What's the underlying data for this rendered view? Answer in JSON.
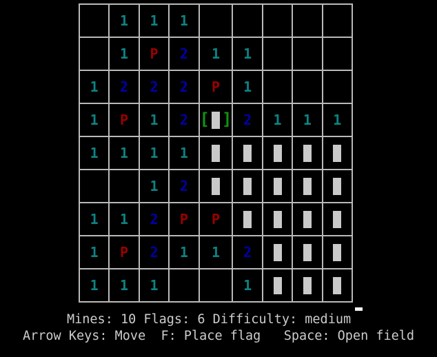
{
  "board": {
    "rows": 9,
    "cols": 9,
    "cells": [
      [
        "",
        "1",
        "1",
        "1",
        "",
        "",
        "",
        "",
        ""
      ],
      [
        "",
        "1",
        "P",
        "2",
        "1",
        "1",
        "",
        "",
        ""
      ],
      [
        "1",
        "2",
        "2",
        "2",
        "P",
        "1",
        "",
        "",
        ""
      ],
      [
        "1",
        "P",
        "1",
        "2",
        "@",
        "2",
        "1",
        "1",
        "1"
      ],
      [
        "1",
        "1",
        "1",
        "1",
        "#",
        "#",
        "#",
        "#",
        "#"
      ],
      [
        "",
        "",
        "1",
        "2",
        "#",
        "#",
        "#",
        "#",
        "#"
      ],
      [
        "1",
        "1",
        "2",
        "P",
        "P",
        "#",
        "#",
        "#",
        "#"
      ],
      [
        "1",
        "P",
        "2",
        "1",
        "1",
        "2",
        "#",
        "#",
        "#"
      ],
      [
        "1",
        "1",
        "1",
        "",
        "",
        "1",
        "#",
        "#",
        "#"
      ]
    ],
    "cursor": {
      "row": 4,
      "col": 5,
      "left_bracket": "[",
      "right_bracket": "]"
    }
  },
  "status": {
    "line1": "Mines: 10 Flags: 6 Difficulty: medium",
    "mines": "10",
    "flags": "6",
    "difficulty": "medium",
    "line2": "Arrow Keys: Move  F: Place flag   Space: Open field",
    "move_hint": "Arrow Keys: Move",
    "flag_hint": "F: Place flag",
    "open_hint": "Space: Open field"
  },
  "colors": {
    "background": "#000000",
    "gridline": "#bababa",
    "number_one": "#0d8383",
    "number_two": "#0000a8",
    "flag": "#9b0000",
    "block": "#c9c9c9",
    "cursor_bracket": "#0f9310",
    "status_text": "#cccccc",
    "terminal_cursor": "#f2f2f2"
  }
}
